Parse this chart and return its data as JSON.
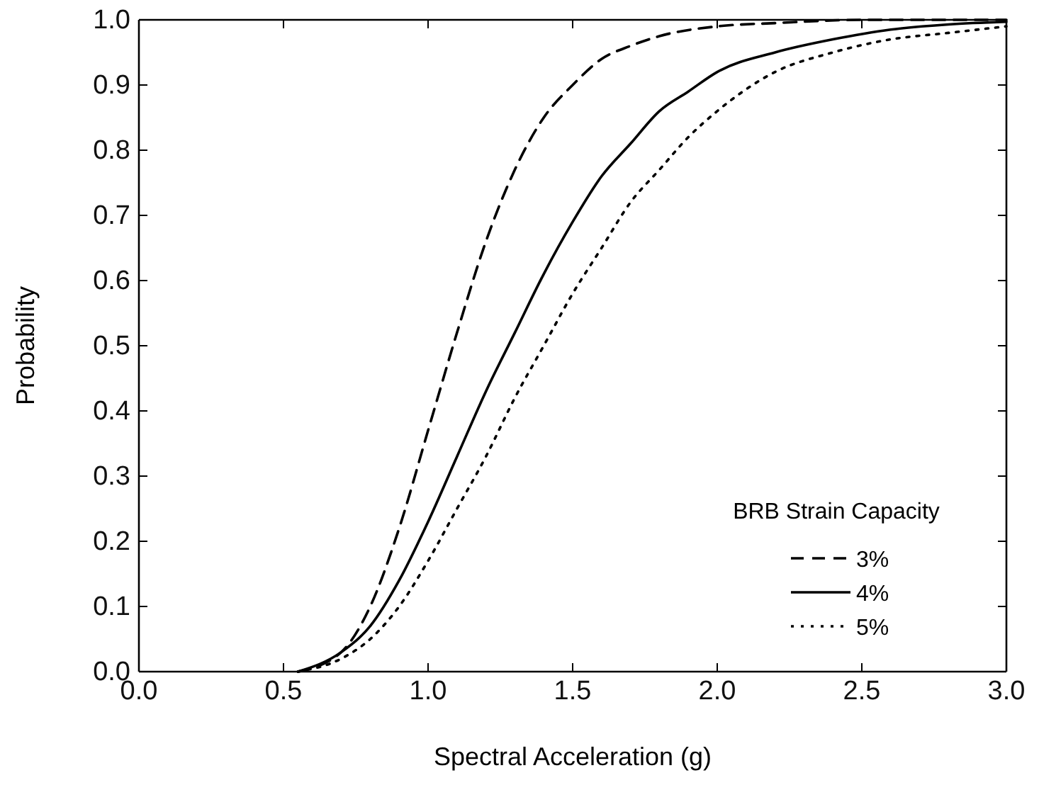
{
  "chart_data": {
    "type": "line",
    "xlabel": "Spectral Acceleration (g)",
    "ylabel": "Probability",
    "legend_title": "BRB Strain Capacity",
    "legend": "bottom right",
    "grid": false,
    "marker": "none",
    "xlim": [
      0,
      3
    ],
    "xticks": [
      {
        "value": 0,
        "label": "0.0"
      },
      {
        "value": 0.5,
        "label": "0.5"
      },
      {
        "value": 1,
        "label": "1.0"
      },
      {
        "value": 1.5,
        "label": "1.5"
      },
      {
        "value": 2,
        "label": "2.0"
      },
      {
        "value": 2.5,
        "label": "2.5"
      },
      {
        "value": 3,
        "label": "3.0"
      }
    ],
    "ylim": [
      0,
      1
    ],
    "yticks": [
      {
        "value": 0,
        "label": "0.0"
      },
      {
        "value": 0.1,
        "label": "0.1"
      },
      {
        "value": 0.2,
        "label": "0.2"
      },
      {
        "value": 0.3,
        "label": "0.3"
      },
      {
        "value": 0.4,
        "label": "0.4"
      },
      {
        "value": 0.5,
        "label": "0.5"
      },
      {
        "value": 0.6,
        "label": "0.6"
      },
      {
        "value": 0.7,
        "label": "0.7"
      },
      {
        "value": 0.8,
        "label": "0.8"
      },
      {
        "value": 0.9,
        "label": "0.9"
      },
      {
        "value": 1,
        "label": "1.0"
      }
    ],
    "series": [
      {
        "name": "3%",
        "color": "#000000",
        "line_style": "dashed",
        "x": [
          0.55,
          0.7,
          0.8,
          0.9,
          1.0,
          1.1,
          1.2,
          1.3,
          1.4,
          1.5,
          1.6,
          1.7,
          1.8,
          2.0,
          2.2,
          2.5,
          3.0
        ],
        "values": [
          0,
          0.03,
          0.1,
          0.22,
          0.37,
          0.52,
          0.66,
          0.77,
          0.85,
          0.9,
          0.94,
          0.96,
          0.975,
          0.99,
          0.995,
          1.0,
          1.0
        ]
      },
      {
        "name": "4%",
        "color": "#000000",
        "line_style": "solid",
        "x": [
          0.55,
          0.7,
          0.8,
          0.9,
          1.0,
          1.1,
          1.2,
          1.3,
          1.4,
          1.5,
          1.6,
          1.7,
          1.8,
          1.9,
          2.0,
          2.2,
          2.4,
          2.6,
          2.8,
          3.0
        ],
        "values": [
          0,
          0.03,
          0.07,
          0.14,
          0.23,
          0.33,
          0.43,
          0.52,
          0.61,
          0.69,
          0.76,
          0.81,
          0.86,
          0.89,
          0.92,
          0.95,
          0.97,
          0.985,
          0.993,
          0.997
        ]
      },
      {
        "name": "5%",
        "color": "#000000",
        "line_style": "dotted",
        "x": [
          0.55,
          0.7,
          0.8,
          0.9,
          1.0,
          1.1,
          1.2,
          1.3,
          1.4,
          1.5,
          1.6,
          1.7,
          1.8,
          1.9,
          2.0,
          2.2,
          2.4,
          2.6,
          2.8,
          3.0
        ],
        "values": [
          0,
          0.02,
          0.05,
          0.1,
          0.17,
          0.25,
          0.33,
          0.42,
          0.5,
          0.58,
          0.65,
          0.72,
          0.77,
          0.82,
          0.86,
          0.92,
          0.95,
          0.97,
          0.98,
          0.99
        ]
      }
    ]
  }
}
